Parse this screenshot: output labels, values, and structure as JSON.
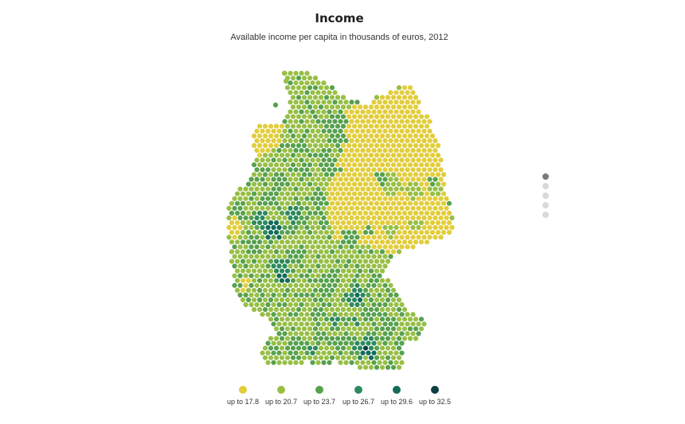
{
  "title": "Income",
  "subtitle": "Available income per capita in thousands of euros, 2012",
  "legend": [
    {
      "label": "up to 17.8",
      "color": "#e2cd3c"
    },
    {
      "label": "up to 20.7",
      "color": "#98bf45"
    },
    {
      "label": "up to 23.7",
      "color": "#57a14e"
    },
    {
      "label": "up to 26.7",
      "color": "#2d8a5d"
    },
    {
      "label": "up to 29.6",
      "color": "#136b5a"
    },
    {
      "label": "up to 32.5",
      "color": "#0b3f44"
    }
  ],
  "pager": {
    "count": 5,
    "active": 0
  }
}
